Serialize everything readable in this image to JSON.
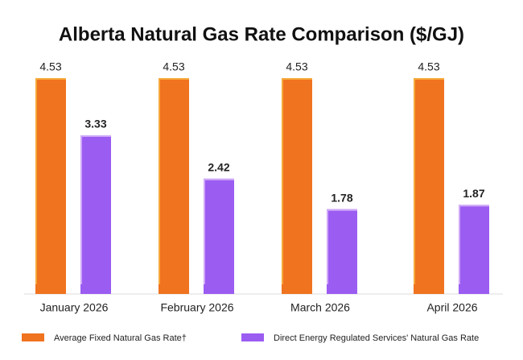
{
  "chart_data": {
    "type": "bar",
    "title": "Alberta Natural Gas Rate Comparison ($/GJ)",
    "categories": [
      "January 2026",
      "February 2026",
      "March 2026",
      "April 2026"
    ],
    "series": [
      {
        "name": "Average Fixed Natural Gas Rate†",
        "color": "#f07320",
        "values": [
          4.53,
          4.53,
          4.53,
          4.53
        ]
      },
      {
        "name": "Direct Energy Regulated Services' Natural Gas Rate",
        "color": "#9b5cf2",
        "values": [
          3.33,
          2.42,
          1.78,
          1.87
        ]
      }
    ]
  }
}
